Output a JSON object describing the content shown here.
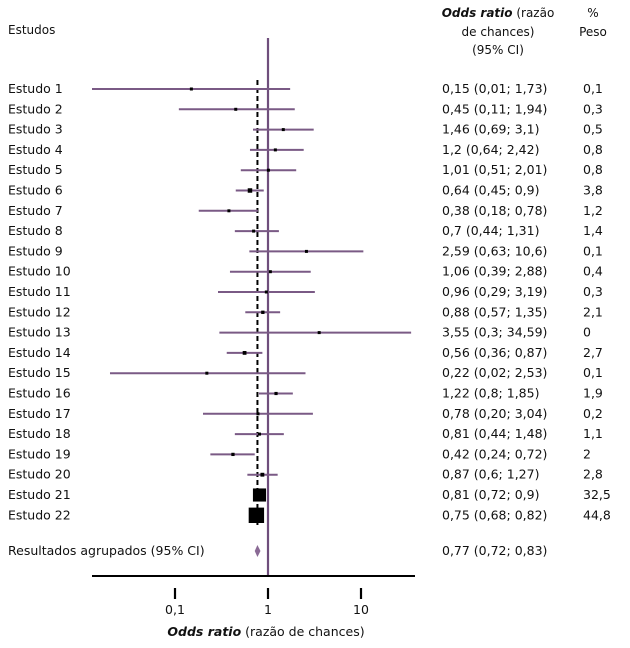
{
  "header": {
    "studies_label": "Estudos",
    "or_title_bold": "Odds ratio",
    "or_title_rest": " (razão",
    "or_title_line2": "de chances)",
    "or_title_line3": "(95% CI)",
    "weight_line1": "%",
    "weight_line2": "Peso"
  },
  "pooled": {
    "label": "Resultados agrupados (95% CI)",
    "text": "0,77 (0,72; 0,83)",
    "or": 0.77,
    "lower": 0.72,
    "upper": 0.83
  },
  "x_axis": {
    "label_bold": "Odds ratio",
    "label_rest": " (razão de chances)",
    "scale": "log",
    "reference_line": 1,
    "ticks": [
      {
        "value": 0.1,
        "label": "0,1"
      },
      {
        "value": 1,
        "label": "1"
      },
      {
        "value": 10,
        "label": "10"
      }
    ]
  },
  "colors": {
    "ci_line": "#7a5a85",
    "marker": "#000000",
    "diamond": "#8a6a95",
    "reference_line": "#6f4e7c"
  },
  "chart_data": {
    "type": "forest",
    "x_scale": "log",
    "studies": [
      {
        "name": "Estudo 1",
        "or": 0.15,
        "lower": 0.01,
        "upper": 1.73,
        "text": "0,15 (0,01; 1,73)",
        "weight": 0.1,
        "weight_label": "0,1"
      },
      {
        "name": "Estudo 2",
        "or": 0.45,
        "lower": 0.11,
        "upper": 1.94,
        "text": "0,45 (0,11; 1,94)",
        "weight": 0.3,
        "weight_label": "0,3"
      },
      {
        "name": "Estudo 3",
        "or": 1.46,
        "lower": 0.69,
        "upper": 3.1,
        "text": "1,46 (0,69; 3,1)",
        "weight": 0.5,
        "weight_label": "0,5"
      },
      {
        "name": "Estudo 4",
        "or": 1.2,
        "lower": 0.64,
        "upper": 2.42,
        "text": "1,2 (0,64; 2,42)",
        "weight": 0.8,
        "weight_label": "0,8"
      },
      {
        "name": "Estudo 5",
        "or": 1.01,
        "lower": 0.51,
        "upper": 2.01,
        "text": "1,01 (0,51; 2,01)",
        "weight": 0.8,
        "weight_label": "0,8"
      },
      {
        "name": "Estudo 6",
        "or": 0.64,
        "lower": 0.45,
        "upper": 0.9,
        "text": "0,64 (0,45; 0,9)",
        "weight": 3.8,
        "weight_label": "3,8"
      },
      {
        "name": "Estudo 7",
        "or": 0.38,
        "lower": 0.18,
        "upper": 0.78,
        "text": "0,38 (0,18; 0,78)",
        "weight": 1.2,
        "weight_label": "1,2"
      },
      {
        "name": "Estudo 8",
        "or": 0.7,
        "lower": 0.44,
        "upper": 1.31,
        "text": "0,7 (0,44; 1,31)",
        "weight": 1.4,
        "weight_label": "1,4"
      },
      {
        "name": "Estudo 9",
        "or": 2.59,
        "lower": 0.63,
        "upper": 10.6,
        "text": "2,59 (0,63; 10,6)",
        "weight": 0.1,
        "weight_label": "0,1"
      },
      {
        "name": "Estudo 10",
        "or": 1.06,
        "lower": 0.39,
        "upper": 2.88,
        "text": "1,06 (0,39; 2,88)",
        "weight": 0.4,
        "weight_label": "0,4"
      },
      {
        "name": "Estudo 11",
        "or": 0.96,
        "lower": 0.29,
        "upper": 3.19,
        "text": "0,96 (0,29; 3,19)",
        "weight": 0.3,
        "weight_label": "0,3"
      },
      {
        "name": "Estudo 12",
        "or": 0.88,
        "lower": 0.57,
        "upper": 1.35,
        "text": "0,88 (0,57; 1,35)",
        "weight": 2.1,
        "weight_label": "2,1"
      },
      {
        "name": "Estudo 13",
        "or": 3.55,
        "lower": 0.3,
        "upper": 34.59,
        "text": "3,55 (0,3; 34,59)",
        "weight": 0,
        "weight_label": "0"
      },
      {
        "name": "Estudo 14",
        "or": 0.56,
        "lower": 0.36,
        "upper": 0.87,
        "text": "0,56 (0,36; 0,87)",
        "weight": 2.7,
        "weight_label": "2,7"
      },
      {
        "name": "Estudo 15",
        "or": 0.22,
        "lower": 0.02,
        "upper": 2.53,
        "text": "0,22 (0,02; 2,53)",
        "weight": 0.1,
        "weight_label": "0,1"
      },
      {
        "name": "Estudo 16",
        "or": 1.22,
        "lower": 0.8,
        "upper": 1.85,
        "text": "1,22 (0,8; 1,85)",
        "weight": 1.9,
        "weight_label": "1,9"
      },
      {
        "name": "Estudo 17",
        "or": 0.78,
        "lower": 0.2,
        "upper": 3.04,
        "text": "0,78 (0,20; 3,04)",
        "weight": 0.2,
        "weight_label": "0,2"
      },
      {
        "name": "Estudo 18",
        "or": 0.81,
        "lower": 0.44,
        "upper": 1.48,
        "text": "0,81 (0,44; 1,48)",
        "weight": 1.1,
        "weight_label": "1,1"
      },
      {
        "name": "Estudo 19",
        "or": 0.42,
        "lower": 0.24,
        "upper": 0.72,
        "text": "0,42 (0,24; 0,72)",
        "weight": 2,
        "weight_label": "2"
      },
      {
        "name": "Estudo 20",
        "or": 0.87,
        "lower": 0.6,
        "upper": 1.27,
        "text": "0,87 (0,6; 1,27)",
        "weight": 2.8,
        "weight_label": "2,8"
      },
      {
        "name": "Estudo 21",
        "or": 0.81,
        "lower": 0.72,
        "upper": 0.9,
        "text": "0,81 (0,72; 0,9)",
        "weight": 32.5,
        "weight_label": "32,5"
      },
      {
        "name": "Estudo 22",
        "or": 0.75,
        "lower": 0.68,
        "upper": 0.82,
        "text": "0,75 (0,68; 0,82)",
        "weight": 44.8,
        "weight_label": "44,8"
      }
    ]
  }
}
